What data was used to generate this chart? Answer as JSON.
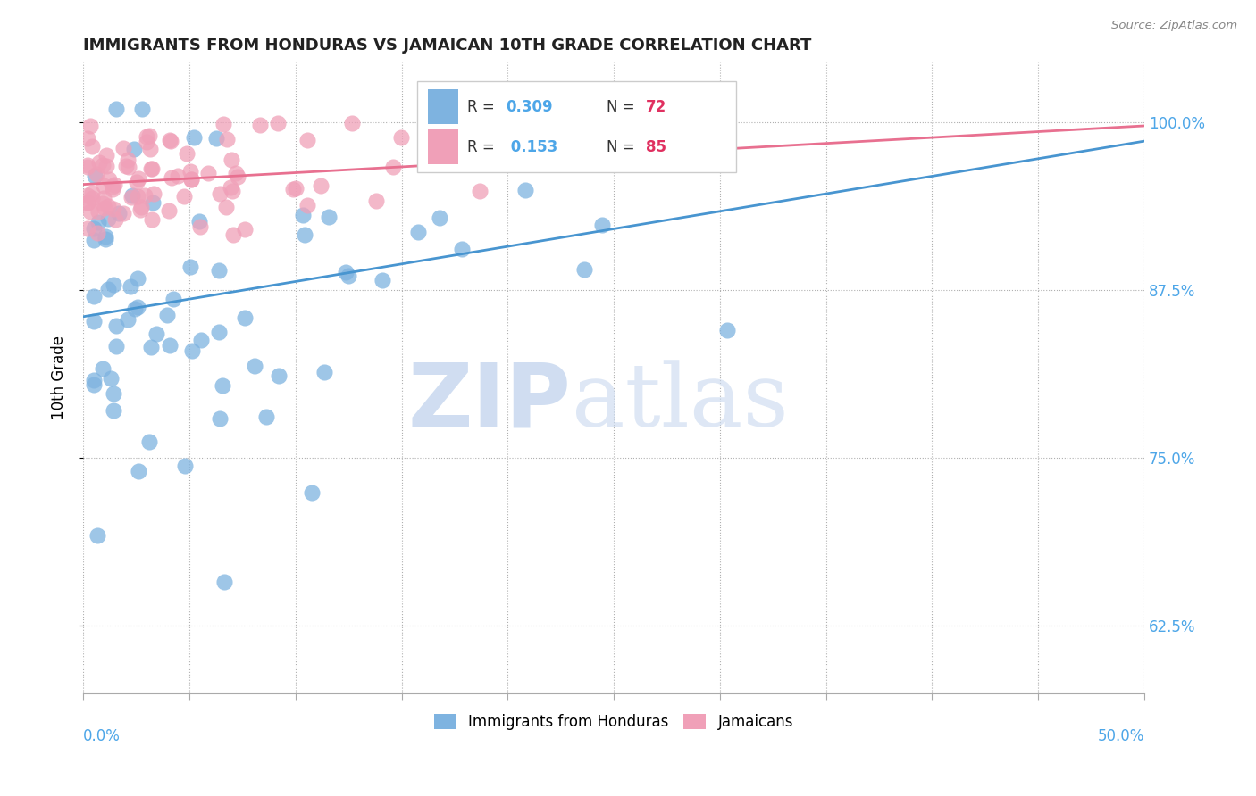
{
  "title": "IMMIGRANTS FROM HONDURAS VS JAMAICAN 10TH GRADE CORRELATION CHART",
  "source": "Source: ZipAtlas.com",
  "ylabel": "10th Grade",
  "yticks": [
    0.625,
    0.75,
    0.875,
    1.0
  ],
  "ytick_labels": [
    "62.5%",
    "75.0%",
    "87.5%",
    "100.0%"
  ],
  "xmin": 0.0,
  "xmax": 0.5,
  "ymin": 0.575,
  "ymax": 1.045,
  "blue_R": 0.309,
  "blue_N": 72,
  "pink_R": 0.153,
  "pink_N": 85,
  "blue_color": "#7eb3e0",
  "pink_color": "#f0a0b8",
  "trend_blue": "#4895d0",
  "trend_pink": "#e87090",
  "legend_R_color": "#4da6e8",
  "legend_N_color": "#e03060",
  "watermark_zip_color": "#c8d8ef",
  "watermark_atlas_color": "#c8d8ef",
  "blue_seed": 42,
  "pink_seed": 99
}
